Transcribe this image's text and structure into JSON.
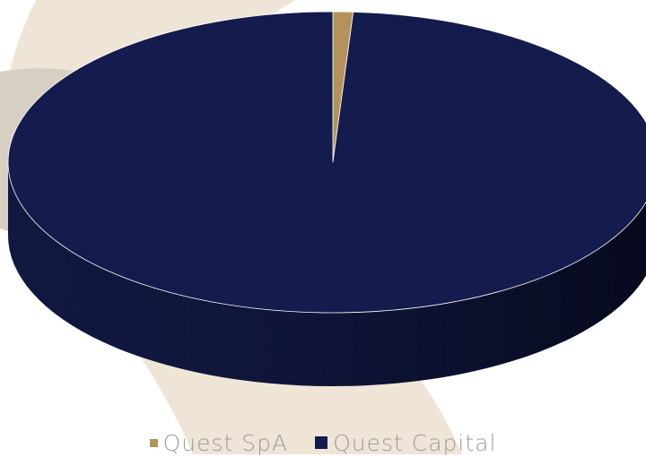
{
  "chart_data": {
    "type": "pie",
    "title": "",
    "series": [
      {
        "name": "Quest SpA",
        "value": 1,
        "color": "#B4925A"
      },
      {
        "name": "Quest Capital",
        "value": 99,
        "color": "#141B4D"
      }
    ],
    "legend_position": "bottom",
    "style": "3d"
  },
  "background": {
    "decoration_color": "#EFE5D6"
  }
}
